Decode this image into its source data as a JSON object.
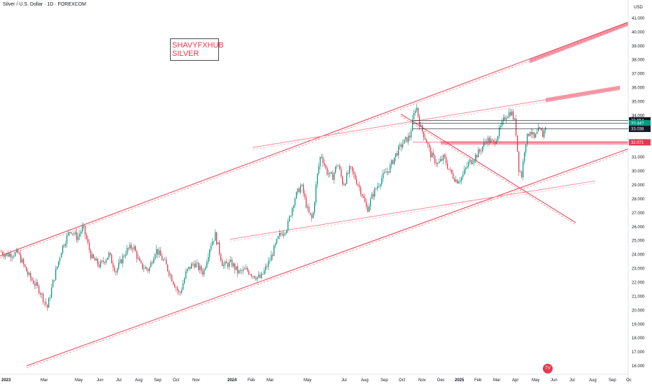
{
  "chart_data": {
    "type": "candlestick",
    "title": "Silver / U.S. Dollar · 1D · FOREXCOM",
    "currency": "USD",
    "annotation": [
      "SHAVYFXHUB",
      "SILVER"
    ],
    "ylim": [
      15.5,
      41.4
    ],
    "y_ticks": [
      16,
      17,
      18,
      19,
      20,
      21,
      22,
      23,
      24,
      25,
      26,
      27,
      28,
      29,
      30,
      31,
      32,
      33,
      34,
      35,
      36,
      37,
      38,
      39,
      40,
      41
    ],
    "x_ticks": [
      "2023",
      "Mar",
      "May",
      "Jun",
      "Jul",
      "Aug",
      "Sep",
      "Oct",
      "Nov",
      "2024",
      "Feb",
      "Mar",
      "May",
      "Jul",
      "Aug",
      "Sep",
      "Oct",
      "Nov",
      "Dec",
      "2025",
      "Feb",
      "Mar",
      "Apr",
      "May",
      "Jun",
      "Jul",
      "Aug",
      "Sep",
      "Oc"
    ],
    "price_path": [
      [
        0,
        24.2
      ],
      [
        10,
        24.0
      ],
      [
        25,
        24.1
      ],
      [
        40,
        22.5
      ],
      [
        55,
        21.5
      ],
      [
        67,
        20.2
      ],
      [
        75,
        22.0
      ],
      [
        88,
        24.5
      ],
      [
        100,
        25.8
      ],
      [
        110,
        25.2
      ],
      [
        118,
        26.0
      ],
      [
        130,
        23.8
      ],
      [
        142,
        23.2
      ],
      [
        155,
        24.0
      ],
      [
        165,
        22.8
      ],
      [
        180,
        24.3
      ],
      [
        190,
        24.6
      ],
      [
        200,
        23.2
      ],
      [
        212,
        22.9
      ],
      [
        222,
        24.4
      ],
      [
        235,
        23.4
      ],
      [
        245,
        22.3
      ],
      [
        256,
        21.1
      ],
      [
        266,
        22.8
      ],
      [
        276,
        23.4
      ],
      [
        290,
        22.7
      ],
      [
        300,
        24.7
      ],
      [
        307,
        25.4
      ],
      [
        318,
        23.2
      ],
      [
        330,
        23.4
      ],
      [
        340,
        22.7
      ],
      [
        352,
        22.9
      ],
      [
        362,
        22.5
      ],
      [
        372,
        22.3
      ],
      [
        385,
        23.6
      ],
      [
        398,
        25.3
      ],
      [
        410,
        26.0
      ],
      [
        420,
        28.0
      ],
      [
        430,
        29.0
      ],
      [
        440,
        27.0
      ],
      [
        446,
        26.5
      ],
      [
        452,
        29.4
      ],
      [
        458,
        31.3
      ],
      [
        466,
        30.0
      ],
      [
        474,
        29.5
      ],
      [
        482,
        30.6
      ],
      [
        490,
        29.0
      ],
      [
        500,
        30.2
      ],
      [
        507,
        29.5
      ],
      [
        516,
        28.5
      ],
      [
        524,
        27.2
      ],
      [
        532,
        28.3
      ],
      [
        545,
        29.5
      ],
      [
        556,
        30.2
      ],
      [
        566,
        31.3
      ],
      [
        575,
        32.0
      ],
      [
        585,
        32.5
      ],
      [
        594,
        34.8
      ],
      [
        600,
        33.2
      ],
      [
        608,
        32.3
      ],
      [
        615,
        31.2
      ],
      [
        625,
        30.5
      ],
      [
        634,
        31.0
      ],
      [
        642,
        30.0
      ],
      [
        652,
        29.3
      ],
      [
        660,
        29.6
      ],
      [
        668,
        30.5
      ],
      [
        676,
        30.9
      ],
      [
        686,
        31.5
      ],
      [
        695,
        32.3
      ],
      [
        705,
        32.0
      ],
      [
        714,
        33.0
      ],
      [
        722,
        34.0
      ],
      [
        730,
        34.3
      ],
      [
        736,
        33.4
      ],
      [
        741,
        30.2
      ],
      [
        745,
        29.7
      ],
      [
        750,
        32.0
      ],
      [
        757,
        33.0
      ],
      [
        763,
        32.3
      ],
      [
        770,
        33.0
      ],
      [
        775,
        32.6
      ],
      [
        780,
        33.44
      ]
    ],
    "trendlines": [
      {
        "from": [
          0,
          23.9
        ],
        "to": [
          898,
          40.7
        ],
        "color": "#e53950"
      },
      {
        "from": [
          38,
          16.0
        ],
        "to": [
          898,
          31.6
        ],
        "color": "#e53950"
      },
      {
        "from": [
          361,
          31.7
        ],
        "to": [
          886,
          36.0
        ],
        "color": "#f28b9a"
      },
      {
        "from": [
          329,
          25.1
        ],
        "to": [
          851,
          29.3
        ],
        "color": "#f28b9a"
      },
      {
        "from": [
          573,
          34.1
        ],
        "to": [
          823,
          26.3
        ],
        "color": "#e53950"
      }
    ],
    "zones": [
      {
        "from_x": 757,
        "from_y": 37.9,
        "to_x": 898,
        "to_y": 40.6,
        "color": "#f28b9a"
      },
      {
        "from_x": 780,
        "from_y": 35.1,
        "to_x": 886,
        "to_y": 36.0,
        "color": "#f28b9a"
      }
    ],
    "support_band": {
      "from_x": 630,
      "low": 31.9,
      "high": 32.15,
      "color": "#e53950"
    },
    "levels": [
      {
        "label": "33.654",
        "value": 33.654,
        "bg": "#131722"
      },
      {
        "label": "33.442",
        "value": 33.442,
        "bg": "#089981"
      },
      {
        "label": "09:27:17",
        "value": 33.15,
        "bg": "#089981"
      },
      {
        "label": "33.038",
        "value": 33.038,
        "bg": "#131722"
      },
      {
        "label": "32.071",
        "value": 32.071,
        "bg": "#e53950"
      }
    ],
    "colors": {
      "up": "#089981",
      "down": "#e53950"
    }
  }
}
